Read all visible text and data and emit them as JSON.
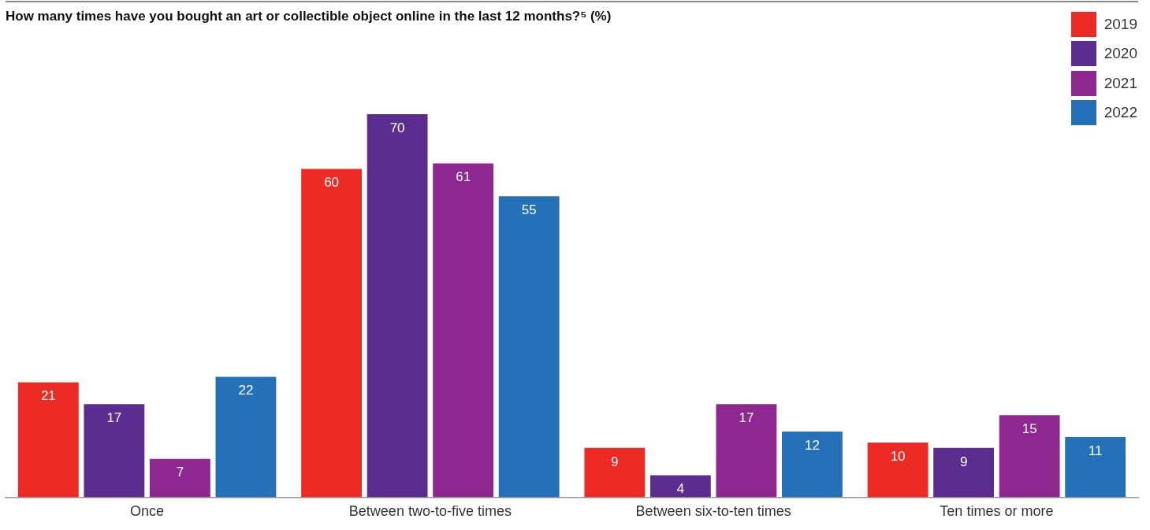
{
  "chart_data": {
    "type": "bar",
    "title": "How many times have you bought an art or collectible object online in the last 12 months?⁵ (%)",
    "categories": [
      "Once",
      "Between two-to-five times",
      "Between six-to-ten times",
      "Ten times or more"
    ],
    "series": [
      {
        "name": "2019",
        "color": "#ee2a24",
        "values": [
          21,
          60,
          9,
          10
        ]
      },
      {
        "name": "2020",
        "color": "#5c2d91",
        "values": [
          17,
          70,
          4,
          9
        ]
      },
      {
        "name": "2021",
        "color": "#8e278f",
        "values": [
          7,
          61,
          17,
          15
        ]
      },
      {
        "name": "2022",
        "color": "#2471b9",
        "values": [
          22,
          55,
          12,
          11
        ]
      }
    ],
    "data_labels": true,
    "legend": "top right",
    "grid": false
  }
}
